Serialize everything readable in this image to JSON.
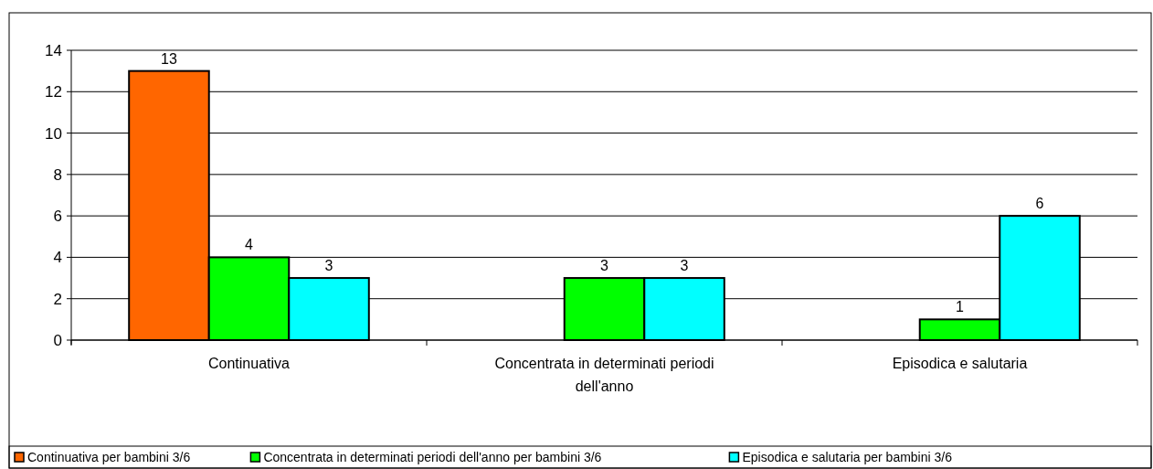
{
  "chart_data": {
    "type": "bar",
    "categories": [
      "Continuativa",
      "Concentrata in determinati periodi dell'anno",
      "Episodica e salutaria"
    ],
    "series": [
      {
        "name": "Continuativa per bambini 3/6",
        "color": "#ff6600",
        "values": [
          13,
          null,
          null
        ]
      },
      {
        "name": "Concentrata in determinati periodi dell'anno per bambini 3/6",
        "color": "#00ff00",
        "values": [
          4,
          3,
          1
        ]
      },
      {
        "name": "Episodica e salutaria per bambini 3/6",
        "color": "#00ffff",
        "values": [
          3,
          3,
          6
        ]
      }
    ],
    "ylim": [
      0,
      14
    ],
    "yticks": [
      0,
      2,
      4,
      6,
      8,
      10,
      12,
      14
    ],
    "grid": "y",
    "legend": "bottom",
    "data_labels": true
  }
}
